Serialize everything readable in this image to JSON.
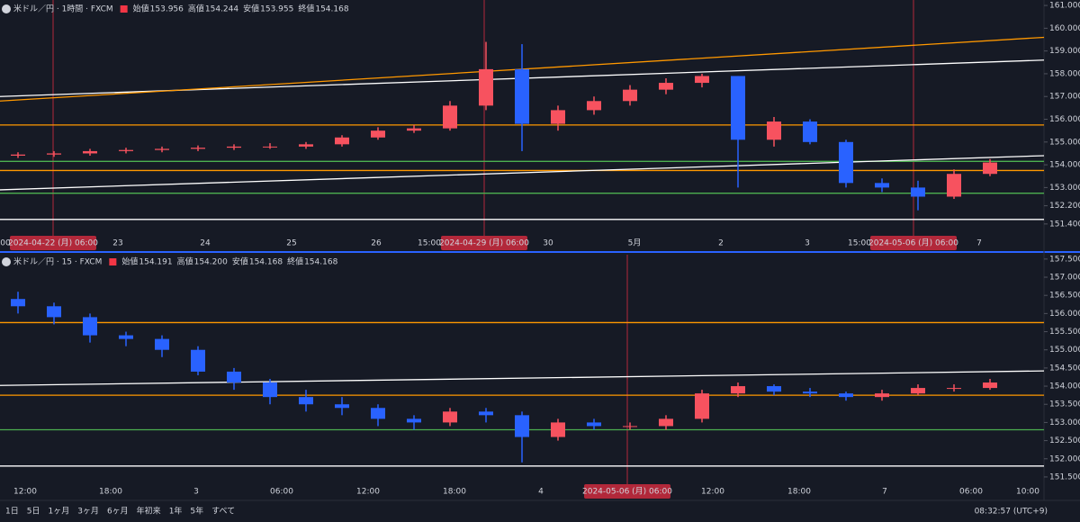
{
  "chart_data": [
    {
      "type": "candlestick",
      "title": "米ドル／円 · 1時間 · FXCM",
      "ohlc": [
        {
          "name": "始値",
          "value": "153.956"
        },
        {
          "name": "高値",
          "value": "154.244"
        },
        {
          "name": "安値",
          "value": "153.955"
        },
        {
          "name": "終値",
          "value": "154.168"
        }
      ],
      "xlabels": [
        "00",
        "2024-04-22 (月)  06:00",
        "23",
        "24",
        "25",
        "26",
        "15:00",
        "2024-04-29 (月)  06:00",
        "30",
        "5月",
        "2",
        "3",
        "15:00",
        "2024-05-06 (月)  06:00",
        "7"
      ],
      "open": [
        154.4,
        154.45,
        154.5,
        154.6,
        154.65,
        154.7,
        154.75,
        154.8,
        154.8,
        154.9,
        155.2,
        155.5,
        155.6,
        156.6,
        158.2,
        155.8,
        156.4,
        156.8,
        157.3,
        157.6,
        157.9,
        155.1,
        155.9,
        155.0,
        153.2,
        153.0,
        152.6,
        153.6
      ],
      "high": [
        154.55,
        154.6,
        154.7,
        154.75,
        154.8,
        154.85,
        154.9,
        154.95,
        155.0,
        155.3,
        155.65,
        155.75,
        156.8,
        159.4,
        159.3,
        156.6,
        157.0,
        157.5,
        157.8,
        158.0,
        157.9,
        156.1,
        156.0,
        155.1,
        153.4,
        153.3,
        153.8,
        154.25
      ],
      "low": [
        154.3,
        154.35,
        154.4,
        154.5,
        154.55,
        154.6,
        154.65,
        154.7,
        154.7,
        154.8,
        155.1,
        155.4,
        155.5,
        156.4,
        154.6,
        155.5,
        156.2,
        156.6,
        157.1,
        157.4,
        153.0,
        154.8,
        154.9,
        153.0,
        152.8,
        152.0,
        152.5,
        153.5
      ],
      "close": [
        154.45,
        154.5,
        154.6,
        154.65,
        154.7,
        154.75,
        154.8,
        154.8,
        154.9,
        155.2,
        155.5,
        155.6,
        156.6,
        158.2,
        155.8,
        156.4,
        156.8,
        157.3,
        157.6,
        157.9,
        155.1,
        155.9,
        155.0,
        153.2,
        153.0,
        152.6,
        153.6,
        154.1
      ],
      "up_color": "#f7525f",
      "down_color": "#2962ff",
      "ylim": [
        150.88,
        161.24
      ],
      "yticks": [
        {
          "value": 161,
          "label": "161.000"
        },
        {
          "value": 160,
          "label": "160.000"
        },
        {
          "value": 159,
          "label": "159.000"
        },
        {
          "value": 158,
          "label": "158.000"
        },
        {
          "value": 157,
          "label": "157.000"
        },
        {
          "value": 156,
          "label": "156.000"
        },
        {
          "value": 155,
          "label": "155.000"
        },
        {
          "value": 154,
          "label": "154.000"
        },
        {
          "value": 153,
          "label": "153.000"
        },
        {
          "value": 152.2,
          "label": "152.200"
        },
        {
          "value": 151.4,
          "label": "151.400"
        }
      ],
      "hlines": [
        {
          "value": 155.75,
          "color": "#ff9800"
        },
        {
          "value": 154.15,
          "color": "#4caf50"
        },
        {
          "value": 153.75,
          "color": "#ff9800"
        },
        {
          "value": 152.75,
          "color": "#4caf50"
        },
        {
          "value": 151.6,
          "color": "#ffffff"
        }
      ],
      "trendlines": [
        {
          "from": 157.0,
          "to": 158.6,
          "color": "#ffffff"
        },
        {
          "from": 156.8,
          "to": 159.6,
          "color": "#ff9800"
        },
        {
          "from": 152.9,
          "to": 154.4,
          "color": "#ffffff"
        }
      ]
    },
    {
      "type": "candlestick",
      "title": "米ドル／円 · 15 · FXCM",
      "ohlc": [
        {
          "name": "始値",
          "value": "154.191"
        },
        {
          "name": "高値",
          "value": "154.200"
        },
        {
          "name": "安値",
          "value": "154.168"
        },
        {
          "name": "終値",
          "value": "154.168"
        }
      ],
      "xlabels": [
        "12:00",
        "18:00",
        "3",
        "06:00",
        "12:00",
        "18:00",
        "4",
        "2024-05-06 (月)  06:00",
        "12:00",
        "18:00",
        "7",
        "06:00",
        "10:00"
      ],
      "open": [
        156.4,
        156.2,
        155.9,
        155.4,
        155.3,
        155.0,
        154.4,
        154.1,
        153.7,
        153.5,
        153.4,
        153.1,
        153.0,
        153.3,
        153.2,
        152.6,
        153.0,
        152.9,
        152.9,
        153.1,
        153.8,
        154.0,
        153.85,
        153.8,
        153.7,
        153.8,
        153.95,
        153.95
      ],
      "high": [
        156.6,
        156.3,
        156.0,
        155.5,
        155.4,
        155.1,
        154.5,
        154.2,
        153.9,
        153.7,
        153.5,
        153.2,
        153.4,
        153.4,
        153.3,
        153.1,
        153.1,
        153.0,
        153.2,
        153.9,
        154.1,
        154.05,
        153.95,
        153.85,
        153.9,
        154.05,
        154.05,
        154.2
      ],
      "low": [
        156.0,
        155.7,
        155.2,
        155.1,
        154.8,
        154.3,
        153.9,
        153.5,
        153.3,
        153.2,
        152.9,
        152.8,
        152.9,
        153.0,
        151.9,
        152.5,
        152.8,
        152.8,
        152.8,
        153.0,
        153.7,
        153.75,
        153.7,
        153.6,
        153.6,
        153.75,
        153.85,
        153.9
      ],
      "close": [
        156.2,
        155.9,
        155.4,
        155.3,
        155.0,
        154.4,
        154.1,
        153.7,
        153.5,
        153.4,
        153.1,
        153.0,
        153.3,
        153.2,
        152.6,
        153.0,
        152.9,
        152.9,
        153.1,
        153.8,
        154.0,
        153.85,
        153.8,
        153.7,
        153.8,
        153.95,
        153.95,
        154.1
      ],
      "up_color": "#f7525f",
      "down_color": "#2962ff",
      "ylim": [
        151.3,
        157.62
      ],
      "yticks": [
        {
          "value": 157.5,
          "label": "157.500"
        },
        {
          "value": 157,
          "label": "157.000"
        },
        {
          "value": 156.5,
          "label": "156.500"
        },
        {
          "value": 156,
          "label": "156.000"
        },
        {
          "value": 155.5,
          "label": "155.500"
        },
        {
          "value": 155,
          "label": "155.000"
        },
        {
          "value": 154.5,
          "label": "154.500"
        },
        {
          "value": 154,
          "label": "154.000"
        },
        {
          "value": 153.5,
          "label": "153.500"
        },
        {
          "value": 153,
          "label": "153.000"
        },
        {
          "value": 152.5,
          "label": "152.500"
        },
        {
          "value": 152,
          "label": "152.000"
        },
        {
          "value": 151.5,
          "label": "151.500"
        }
      ],
      "hlines": [
        {
          "value": 155.75,
          "color": "#ff9800"
        },
        {
          "value": 153.75,
          "color": "#ff9800"
        },
        {
          "value": 152.8,
          "color": "#4caf50"
        },
        {
          "value": 151.8,
          "color": "#ffffff"
        }
      ],
      "trendlines": [
        {
          "from": 154.02,
          "to": 154.42,
          "color": "#ffffff"
        }
      ]
    }
  ],
  "toolbar": {
    "ranges": [
      "1日",
      "5日",
      "1ヶ月",
      "3ヶ月",
      "6ヶ月",
      "年初来",
      "1年",
      "5年",
      "すべて"
    ],
    "clock": "08:32:57 (UTC+9)"
  }
}
